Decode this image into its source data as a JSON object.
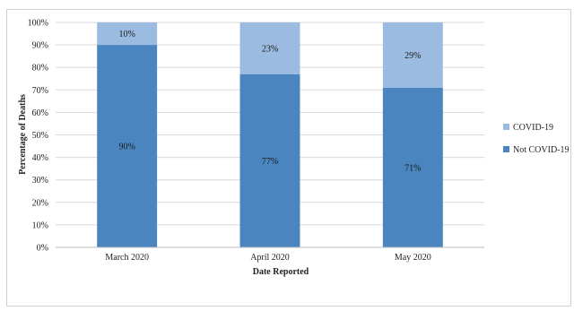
{
  "chart_data": {
    "type": "bar",
    "stacked": true,
    "title": "",
    "xlabel": "Date Reported",
    "ylabel": "Percentage of Deaths",
    "categories": [
      "March 2020",
      "April 2020",
      "May 2020"
    ],
    "series": [
      {
        "name": "Not COVID-19",
        "values": [
          90,
          77,
          71
        ],
        "labels": [
          "90%",
          "77%",
          "71%"
        ],
        "color": "#4a85c0"
      },
      {
        "name": "COVID-19",
        "values": [
          10,
          23,
          29
        ],
        "labels": [
          "10%",
          "23%",
          "29%"
        ],
        "color": "#9bbbe0"
      }
    ],
    "ylim": [
      0,
      100
    ],
    "y_ticks": [
      "0%",
      "10%",
      "20%",
      "30%",
      "40%",
      "50%",
      "60%",
      "70%",
      "80%",
      "90%",
      "100%"
    ],
    "grid": true,
    "legend": {
      "position": "right",
      "entries": [
        "COVID-19",
        "Not COVID-19"
      ]
    }
  }
}
